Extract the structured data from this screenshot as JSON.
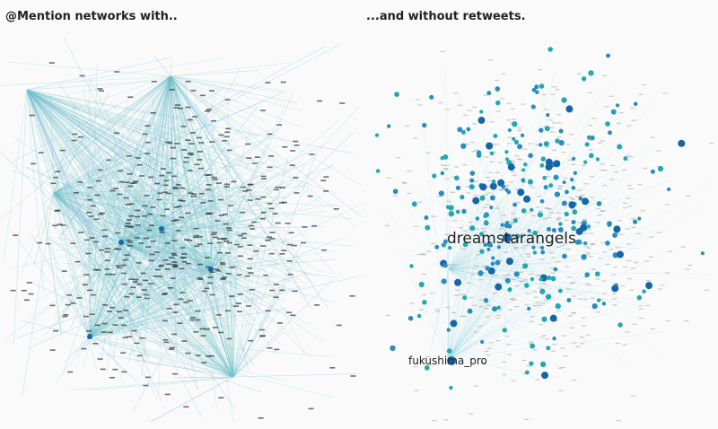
{
  "panels": [
    {
      "title": "@Mention networks with.."
    },
    {
      "title": "...and without retweets.",
      "labels": [
        "dreamstarangels",
        "fukushima_pro"
      ]
    }
  ]
}
